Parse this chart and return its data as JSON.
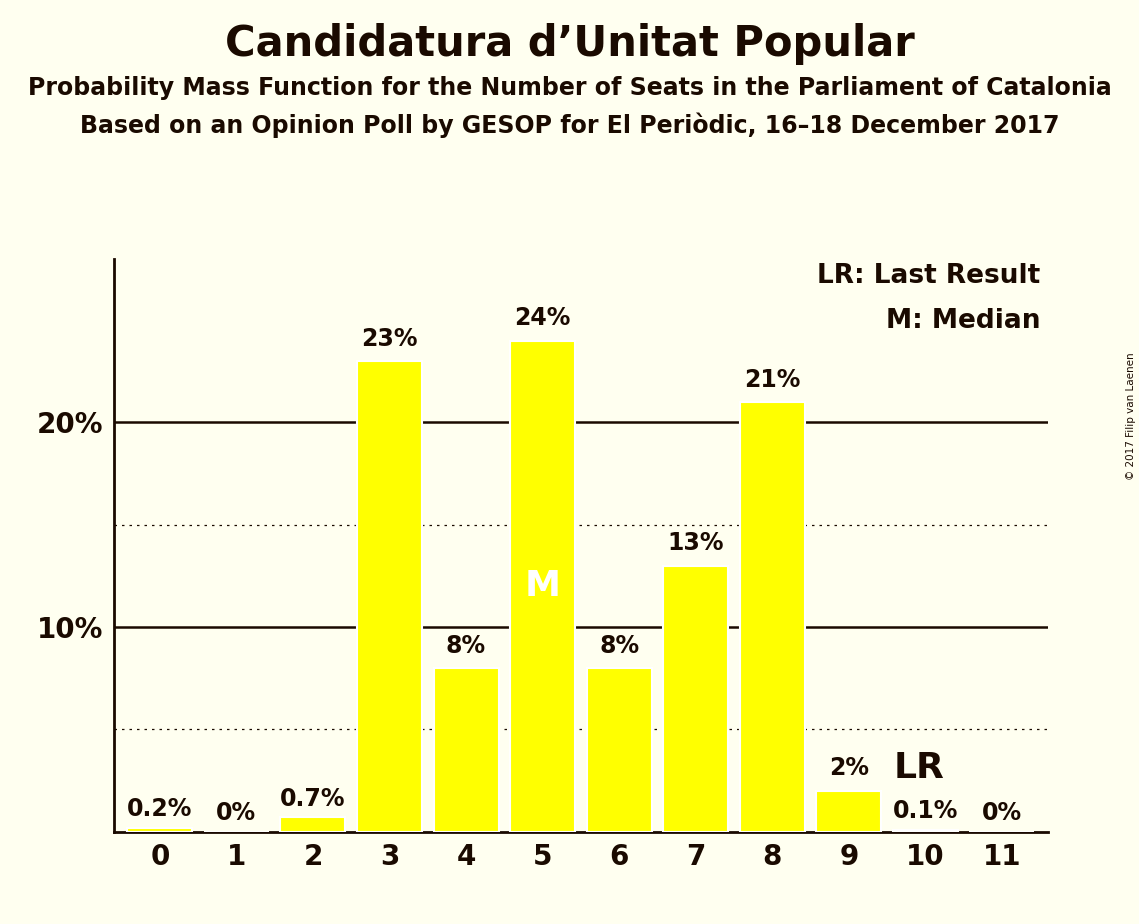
{
  "title": "Candidatura d’Unitat Popular",
  "subtitle1": "Probability Mass Function for the Number of Seats in the Parliament of Catalonia",
  "subtitle2": "Based on an Opinion Poll by GESOP for El Periòdic, 16–18 December 2017",
  "copyright": "© 2017 Filip van Laenen",
  "categories": [
    0,
    1,
    2,
    3,
    4,
    5,
    6,
    7,
    8,
    9,
    10,
    11
  ],
  "values": [
    0.2,
    0.0,
    0.7,
    23.0,
    8.0,
    24.0,
    8.0,
    13.0,
    21.0,
    2.0,
    0.1,
    0.0
  ],
  "labels": [
    "0.2%",
    "0%",
    "0.7%",
    "23%",
    "8%",
    "24%",
    "8%",
    "13%",
    "21%",
    "2%",
    "0.1%",
    "0%"
  ],
  "bar_color": "#FFFF00",
  "bar_edge_color": "#FFFFFF",
  "background_color": "#FFFFF0",
  "text_color": "#1a0a00",
  "median_seat": 5,
  "median_label": "M",
  "lr_seat": 9,
  "lr_label": "LR",
  "lr_annotation": "LR: Last Result",
  "m_annotation": "M: Median",
  "ylim": [
    0,
    28
  ],
  "title_fontsize": 30,
  "subtitle_fontsize": 17,
  "label_fontsize": 17,
  "tick_fontsize": 20,
  "annotation_fontsize": 19,
  "median_label_fontsize": 26,
  "lr_label_fontsize": 26
}
